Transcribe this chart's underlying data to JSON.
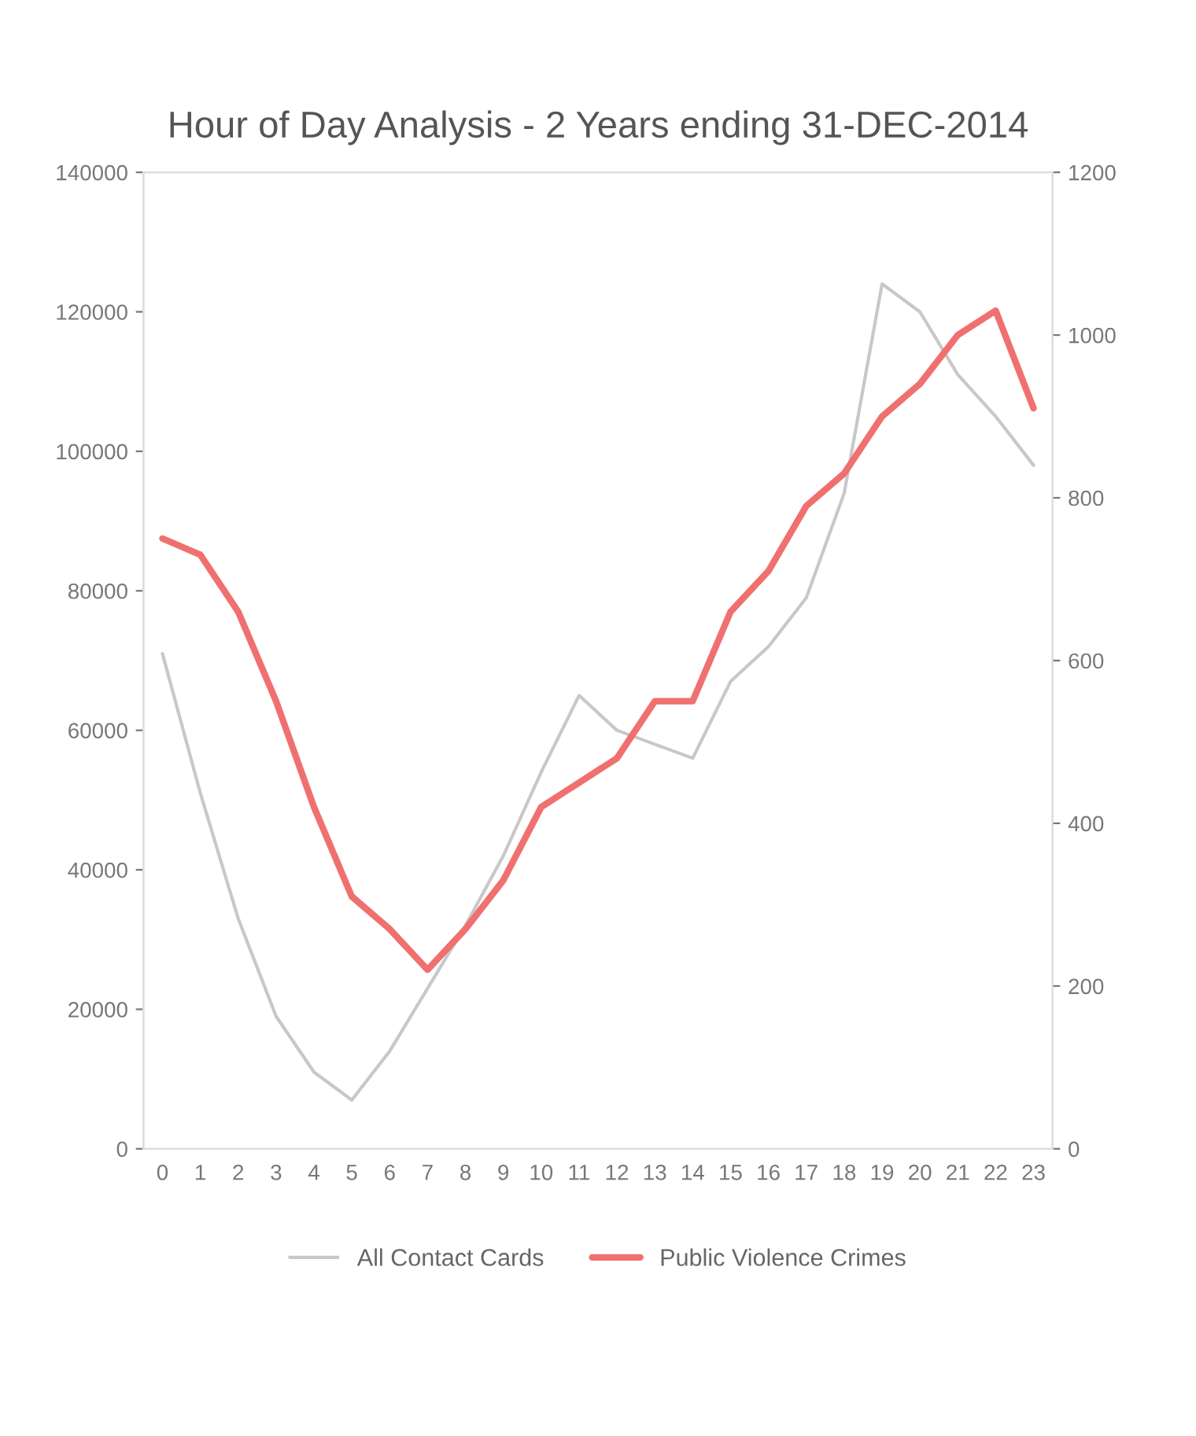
{
  "chart_data": {
    "type": "line",
    "title": "Hour of Day Analysis - 2 Years ending 31-DEC-2014",
    "categories": [
      "0",
      "1",
      "2",
      "3",
      "4",
      "5",
      "6",
      "7",
      "8",
      "9",
      "10",
      "11",
      "12",
      "13",
      "14",
      "15",
      "16",
      "17",
      "18",
      "19",
      "20",
      "21",
      "22",
      "23"
    ],
    "series": [
      {
        "name": "All Contact Cards",
        "color": "#c8c8c8",
        "values": [
          71000,
          51000,
          33000,
          19000,
          11000,
          7000,
          14000,
          23000,
          32000,
          42000,
          54000,
          65000,
          60000,
          58000,
          56000,
          67000,
          72000,
          79000,
          94000,
          124000,
          120000,
          111000,
          105000,
          98000
        ]
      },
      {
        "name": "Public Violence Crimes",
        "color": "#f07070",
        "axis": "y2",
        "values": [
          750,
          730,
          660,
          550,
          420,
          310,
          270,
          220,
          270,
          330,
          420,
          450,
          480,
          550,
          550,
          660,
          710,
          790,
          830,
          900,
          940,
          1000,
          1030,
          910
        ]
      }
    ],
    "ylim": [
      0,
      140000
    ],
    "yticks": [
      0,
      20000,
      40000,
      60000,
      80000,
      100000,
      120000,
      140000
    ],
    "y2lim": [
      0,
      1200
    ],
    "y2ticks": [
      0,
      200,
      400,
      600,
      800,
      1000,
      1200
    ],
    "legend": "bottom",
    "grid": false
  }
}
